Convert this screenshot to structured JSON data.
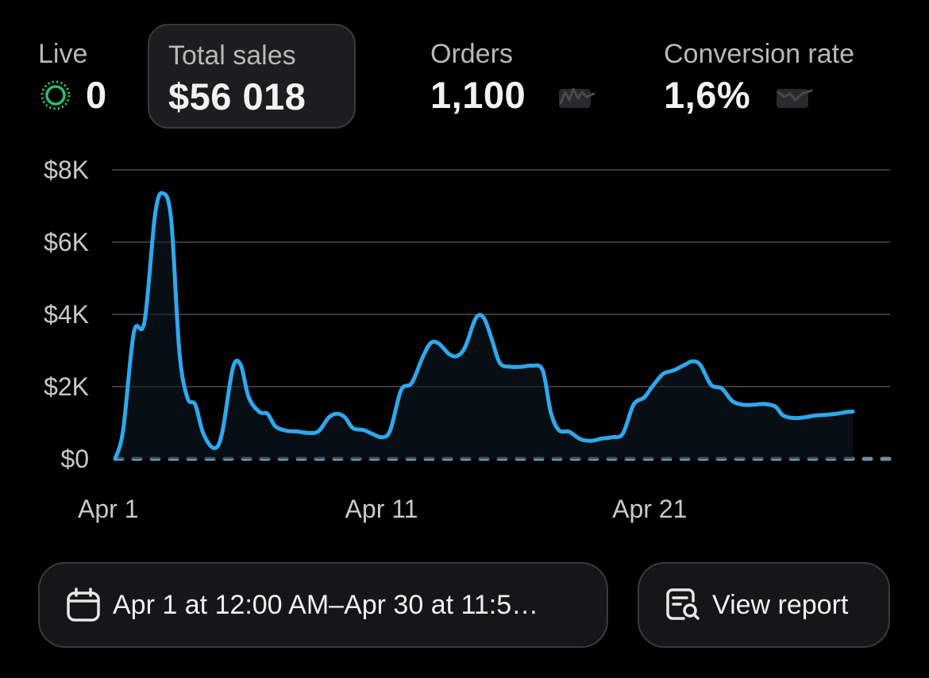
{
  "metrics": {
    "live": {
      "label": "Live",
      "value": "0"
    },
    "total_sales": {
      "label": "Total sales",
      "value": "$56 018"
    },
    "orders": {
      "label": "Orders",
      "value": "1,100"
    },
    "conversion_rate": {
      "label": "Conversion rate",
      "value": "1,6%"
    }
  },
  "icons": {
    "live": "live-status-icon",
    "orders_trend": "sparkline-icon",
    "conversion_trend": "sparkline-icon",
    "calendar": "calendar-icon",
    "report": "report-search-icon"
  },
  "colors": {
    "line": "#2ea8ec",
    "baseline": "#6f8fa3",
    "live": "#25c26a",
    "grid": "#3a3a3a"
  },
  "chart_data": {
    "type": "line",
    "y_tick_labels": [
      "$0",
      "$2K",
      "$4K",
      "$6K",
      "$8K"
    ],
    "x_tick_labels": [
      "Apr 1",
      "Apr 11",
      "Apr 21"
    ],
    "ylim": [
      0,
      8000
    ],
    "xlim": [
      1,
      30
    ],
    "grid": true,
    "series": [
      {
        "points": [
          [
            1.0,
            0
          ],
          [
            1.3,
            800
          ],
          [
            1.7,
            3500
          ],
          [
            2.1,
            3800
          ],
          [
            2.5,
            6800
          ],
          [
            2.8,
            7350
          ],
          [
            3.1,
            6600
          ],
          [
            3.4,
            3000
          ],
          [
            3.7,
            1700
          ],
          [
            4.0,
            1500
          ],
          [
            4.3,
            700
          ],
          [
            4.7,
            300
          ],
          [
            5.0,
            700
          ],
          [
            5.4,
            2500
          ],
          [
            5.7,
            2600
          ],
          [
            6.0,
            1700
          ],
          [
            6.4,
            1300
          ],
          [
            6.7,
            1250
          ],
          [
            7.0,
            900
          ],
          [
            7.4,
            780
          ],
          [
            7.8,
            760
          ],
          [
            8.2,
            720
          ],
          [
            8.6,
            760
          ],
          [
            9.0,
            1150
          ],
          [
            9.3,
            1250
          ],
          [
            9.6,
            1150
          ],
          [
            9.9,
            850
          ],
          [
            10.3,
            800
          ],
          [
            10.6,
            700
          ],
          [
            11.0,
            600
          ],
          [
            11.3,
            800
          ],
          [
            11.7,
            1900
          ],
          [
            12.1,
            2100
          ],
          [
            12.5,
            2800
          ],
          [
            12.8,
            3200
          ],
          [
            13.1,
            3200
          ],
          [
            13.5,
            2900
          ],
          [
            13.8,
            2850
          ],
          [
            14.1,
            3100
          ],
          [
            14.5,
            3900
          ],
          [
            14.8,
            3900
          ],
          [
            15.1,
            3300
          ],
          [
            15.4,
            2650
          ],
          [
            15.8,
            2550
          ],
          [
            16.2,
            2550
          ],
          [
            16.6,
            2580
          ],
          [
            17.0,
            2450
          ],
          [
            17.3,
            1300
          ],
          [
            17.6,
            800
          ],
          [
            18.0,
            750
          ],
          [
            18.4,
            550
          ],
          [
            18.8,
            500
          ],
          [
            19.2,
            560
          ],
          [
            19.6,
            600
          ],
          [
            20.0,
            700
          ],
          [
            20.4,
            1500
          ],
          [
            20.8,
            1700
          ],
          [
            21.1,
            2000
          ],
          [
            21.5,
            2350
          ],
          [
            21.9,
            2450
          ],
          [
            22.3,
            2600
          ],
          [
            22.6,
            2700
          ],
          [
            22.9,
            2600
          ],
          [
            23.3,
            2050
          ],
          [
            23.7,
            1950
          ],
          [
            24.1,
            1600
          ],
          [
            24.5,
            1500
          ],
          [
            24.9,
            1500
          ],
          [
            25.3,
            1520
          ],
          [
            25.7,
            1450
          ],
          [
            26.0,
            1200
          ],
          [
            26.4,
            1130
          ],
          [
            26.8,
            1150
          ],
          [
            27.2,
            1200
          ],
          [
            27.6,
            1220
          ],
          [
            28.0,
            1250
          ],
          [
            28.4,
            1300
          ],
          [
            28.6,
            1310
          ]
        ]
      }
    ],
    "baseline": {
      "style": "dashed",
      "value": 0
    }
  },
  "buttons": {
    "date_range": {
      "label": "Apr 1 at 12:00 AM–Apr 30 at 11:5…"
    },
    "view_report": {
      "label": "View report"
    }
  }
}
